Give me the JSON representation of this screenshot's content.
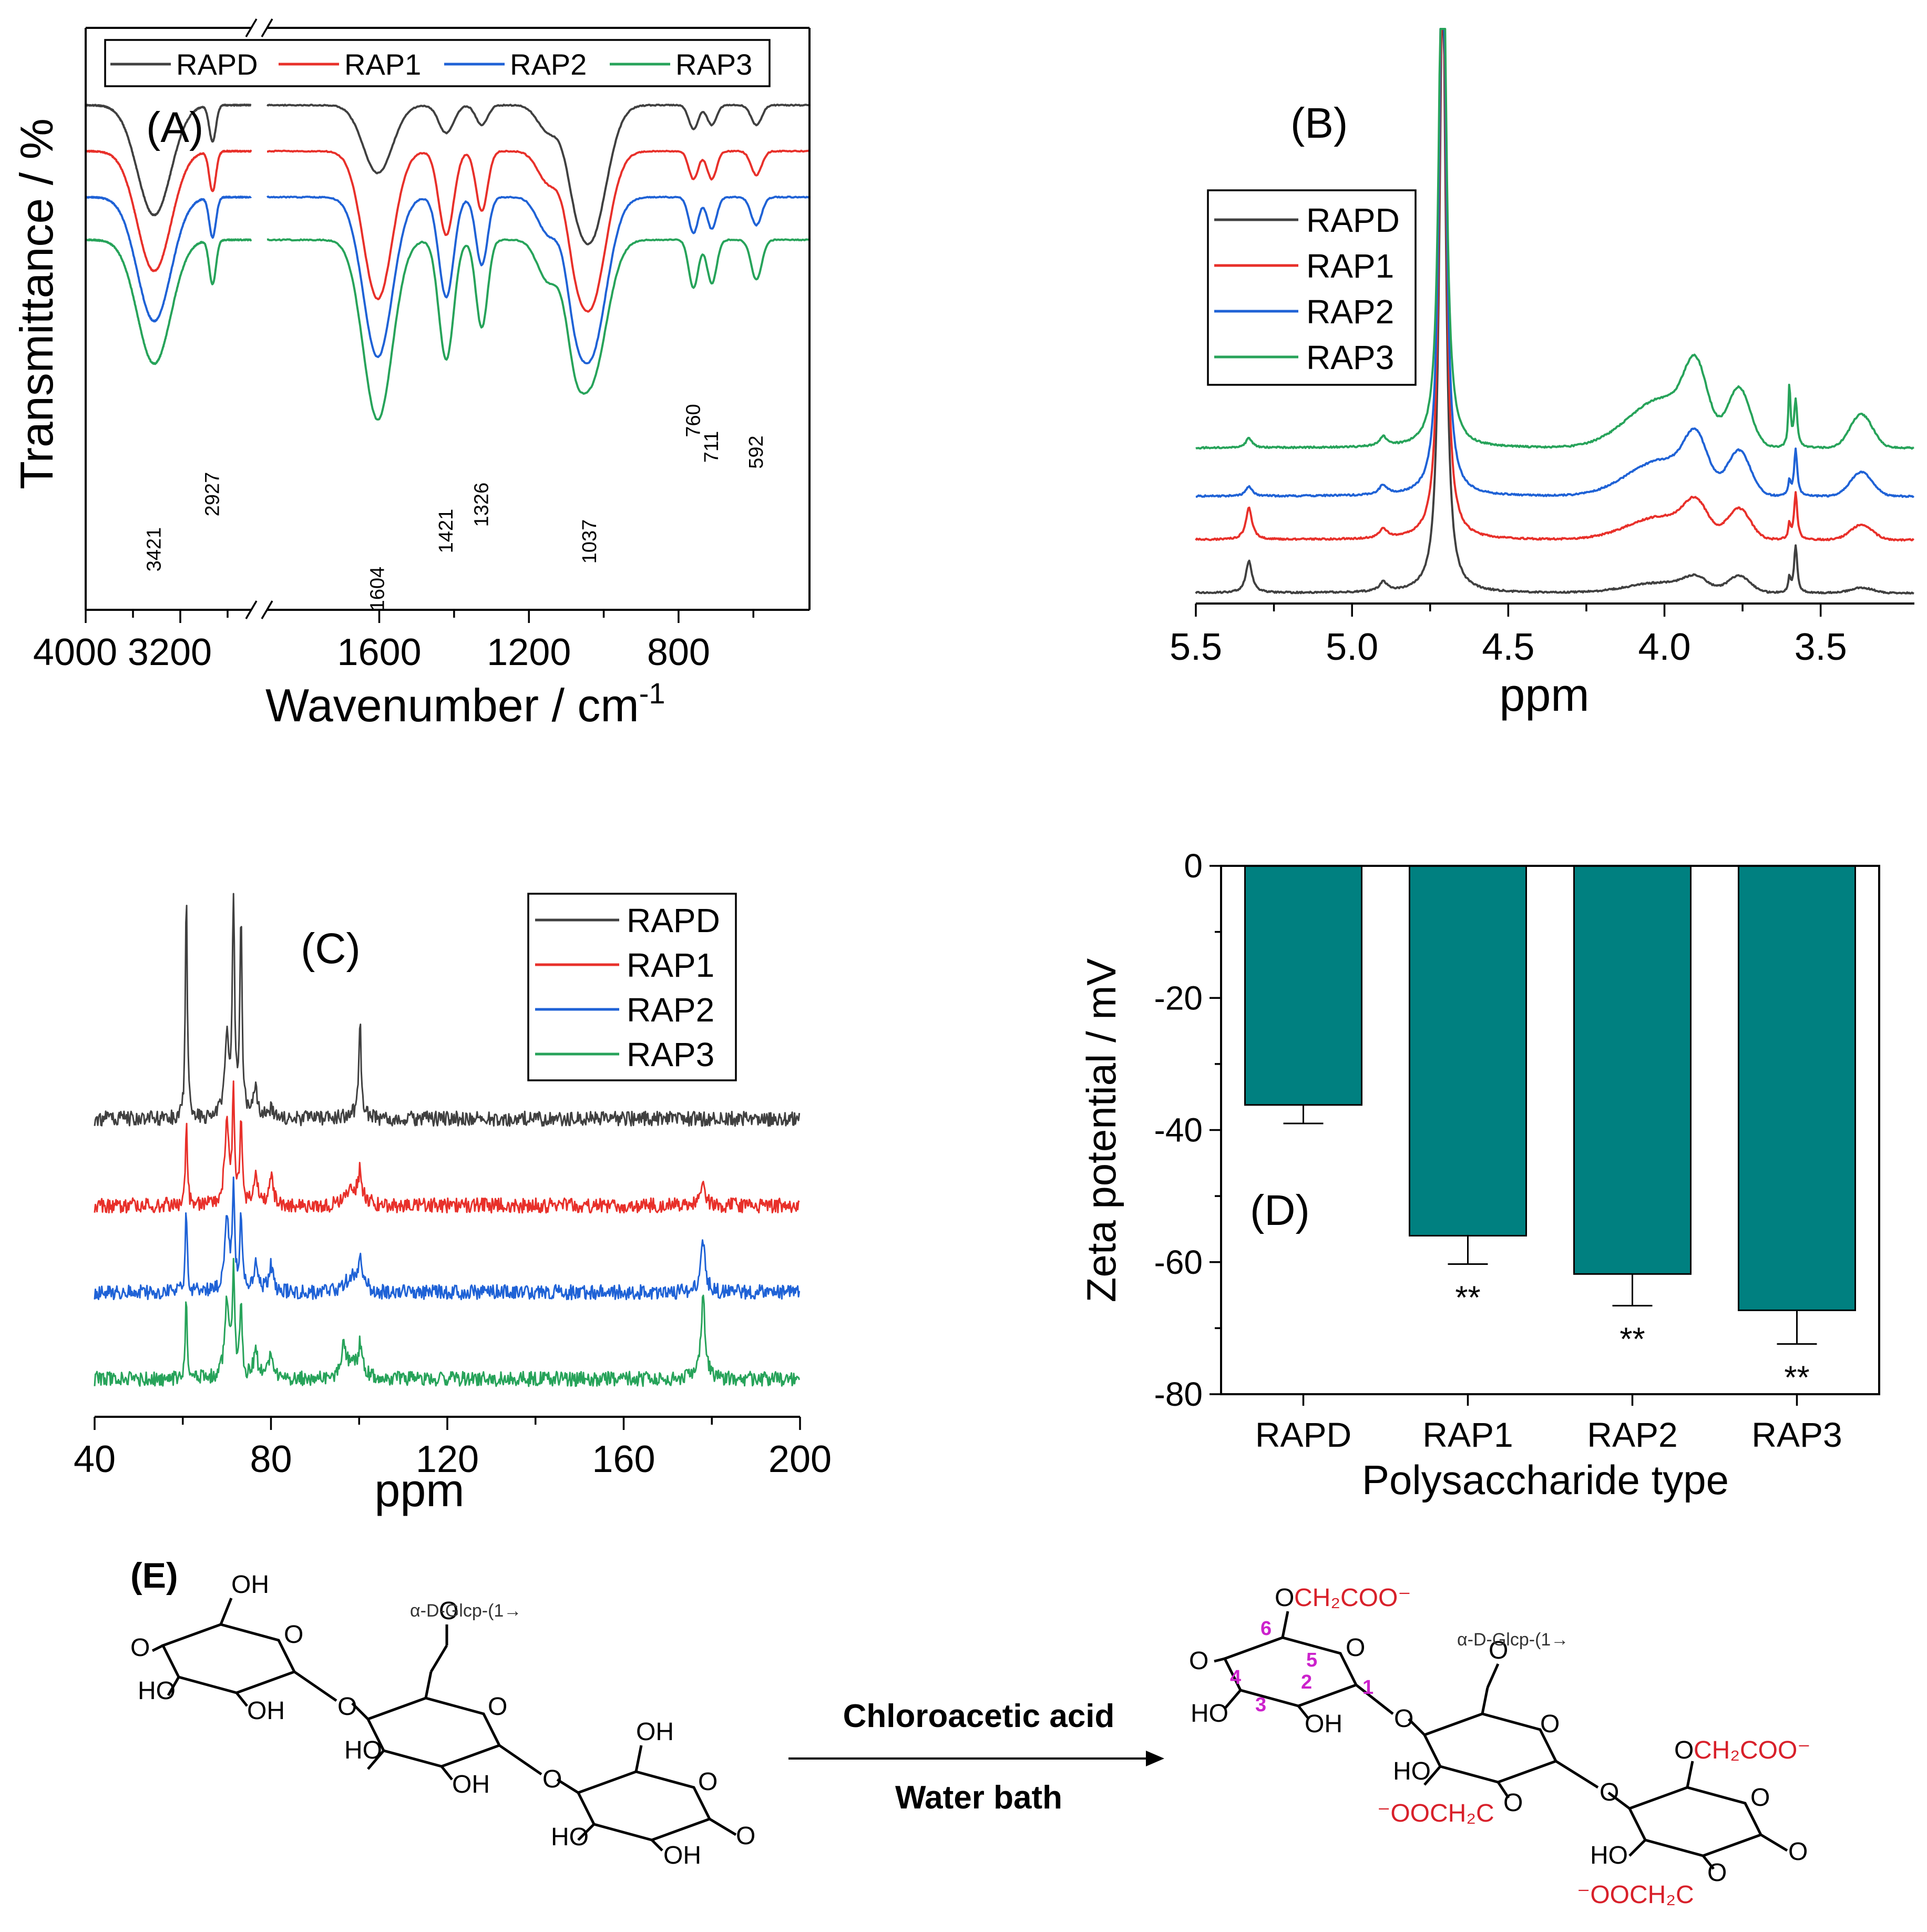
{
  "figure": {
    "chem": {
      "label": "(E)",
      "reagent": "Chloroacetic acid",
      "condition": "Water bath",
      "branch_label": "α-D-Glcp-(1→",
      "groups": {
        "oh": "OH",
        "ho": "HO",
        "o": "O",
        "o_prefix": "O",
        "ch2coo": "CH₂COO⁻",
        "ooch2c": "⁻OOCH₂C"
      },
      "carbon_numbers": [
        "1",
        "2",
        "3",
        "4",
        "5",
        "6"
      ]
    }
  },
  "chart_data": [
    {
      "panel": "(A)",
      "type": "line",
      "title": "",
      "xlabel": "Wavenumber / cm-1",
      "xlabel_main": "Wavenumber / cm",
      "xlabel_sup": "-1",
      "ylabel": "Transmittance / %",
      "x_segments": [
        [
          4000,
          2600
        ],
        [
          1900,
          450
        ]
      ],
      "x_reversed": true,
      "x_ticks": [
        "4000",
        "3200",
        "1600",
        "1200",
        "800"
      ],
      "legend": [
        "RAPD",
        "RAP1",
        "RAP2",
        "RAP3"
      ],
      "colors": [
        "#404040",
        "#e8302a",
        "#1f62d6",
        "#27a35a"
      ],
      "peak_labels": [
        "3421",
        "2927",
        "1604",
        "1421",
        "1326",
        "1037",
        "760",
        "711",
        "592"
      ],
      "peaks_cm": [
        3421,
        2927,
        1604,
        1421,
        1326,
        1037,
        760,
        711,
        592
      ],
      "series": [
        {
          "name": "RAPD",
          "offset": 0.0,
          "depth": [
            0.55,
            0.18,
            0.34,
            0.14,
            0.1,
            0.68,
            0.12,
            0.1,
            0.1
          ]
        },
        {
          "name": "RAP1",
          "offset": 0.7,
          "depth": [
            0.6,
            0.2,
            0.74,
            0.42,
            0.3,
            0.78,
            0.14,
            0.14,
            0.12
          ]
        },
        {
          "name": "RAP2",
          "offset": 1.4,
          "depth": [
            0.62,
            0.2,
            0.8,
            0.5,
            0.34,
            0.8,
            0.18,
            0.16,
            0.14
          ]
        },
        {
          "name": "RAP3",
          "offset": 2.05,
          "depth": [
            0.62,
            0.22,
            0.9,
            0.6,
            0.44,
            0.72,
            0.24,
            0.22,
            0.2
          ]
        }
      ]
    },
    {
      "panel": "(B)",
      "type": "line",
      "title": "",
      "xlabel": "ppm",
      "ylabel": "",
      "xlim": [
        5.5,
        3.2
      ],
      "x_reversed": true,
      "x_ticks": [
        "5.5",
        "5.0",
        "4.5",
        "4.0",
        "3.5"
      ],
      "x_tick_values": [
        5.5,
        5.0,
        4.5,
        4.0,
        3.5
      ],
      "legend": [
        "RAPD",
        "RAP1",
        "RAP2",
        "RAP3"
      ],
      "colors": [
        "#404040",
        "#e8302a",
        "#1f62d6",
        "#27a35a"
      ],
      "series": [
        {
          "name": "RAPD",
          "offset": 0.0
        },
        {
          "name": "RAP1",
          "offset": 1.1
        },
        {
          "name": "RAP2",
          "offset": 2.0
        },
        {
          "name": "RAP3",
          "offset": 3.0
        }
      ]
    },
    {
      "panel": "(C)",
      "type": "line",
      "title": "",
      "xlabel": "ppm",
      "ylabel": "",
      "xlim": [
        40,
        200
      ],
      "x_ticks": [
        "40",
        "80",
        "120",
        "160",
        "200"
      ],
      "x_tick_values": [
        40,
        80,
        120,
        160,
        200
      ],
      "legend": [
        "RAPD",
        "RAP1",
        "RAP2",
        "RAP3"
      ],
      "colors": [
        "#404040",
        "#e8302a",
        "#1f62d6",
        "#27a35a"
      ],
      "series": [
        {
          "name": "RAPD",
          "offset": 3.0
        },
        {
          "name": "RAP1",
          "offset": 2.0
        },
        {
          "name": "RAP2",
          "offset": 1.0
        },
        {
          "name": "RAP3",
          "offset": 0.0
        }
      ]
    },
    {
      "panel": "(D)",
      "type": "bar",
      "title": "",
      "xlabel": "Polysaccharide type",
      "ylabel": "Zeta potential / mV",
      "categories": [
        "RAPD",
        "RAP1",
        "RAP2",
        "RAP3"
      ],
      "values": [
        -36.2,
        -56.0,
        -61.8,
        -67.3
      ],
      "errors": [
        2.8,
        4.3,
        4.8,
        5.1
      ],
      "significance": [
        "",
        "**",
        "**",
        "**"
      ],
      "ylim": [
        -80,
        0
      ],
      "y_ticks": [
        "0",
        "-20",
        "-40",
        "-60",
        "-80"
      ],
      "y_tick_values": [
        0,
        -20,
        -40,
        -60,
        -80
      ],
      "bar_color": "#008080"
    }
  ]
}
